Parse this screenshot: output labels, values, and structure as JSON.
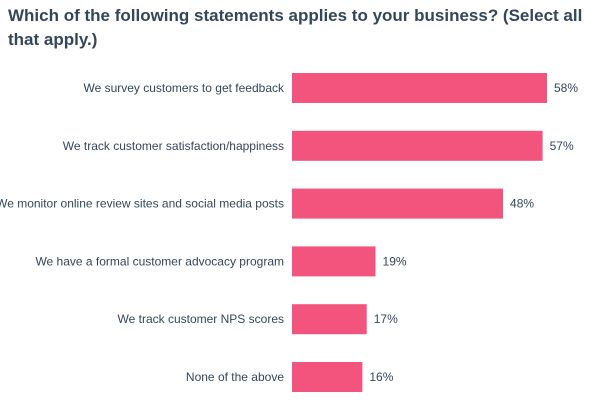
{
  "chart_data": {
    "type": "bar",
    "orientation": "horizontal",
    "title": "Which of the following statements applies to your business? (Select all that apply.)",
    "categories": [
      "We survey customers to get feedback",
      "We track customer satisfaction/happiness",
      "We monitor online review sites and social media posts",
      "We have a formal customer advocacy program",
      "We track customer NPS scores",
      "None of the above"
    ],
    "values": [
      58,
      57,
      48,
      19,
      17,
      16
    ],
    "value_labels": [
      "58%",
      "57%",
      "48%",
      "19%",
      "17%",
      "16%"
    ],
    "unit": "%",
    "xlim": [
      0,
      100
    ],
    "grid": false,
    "legend": "none",
    "bar_color": "#f2547d"
  }
}
